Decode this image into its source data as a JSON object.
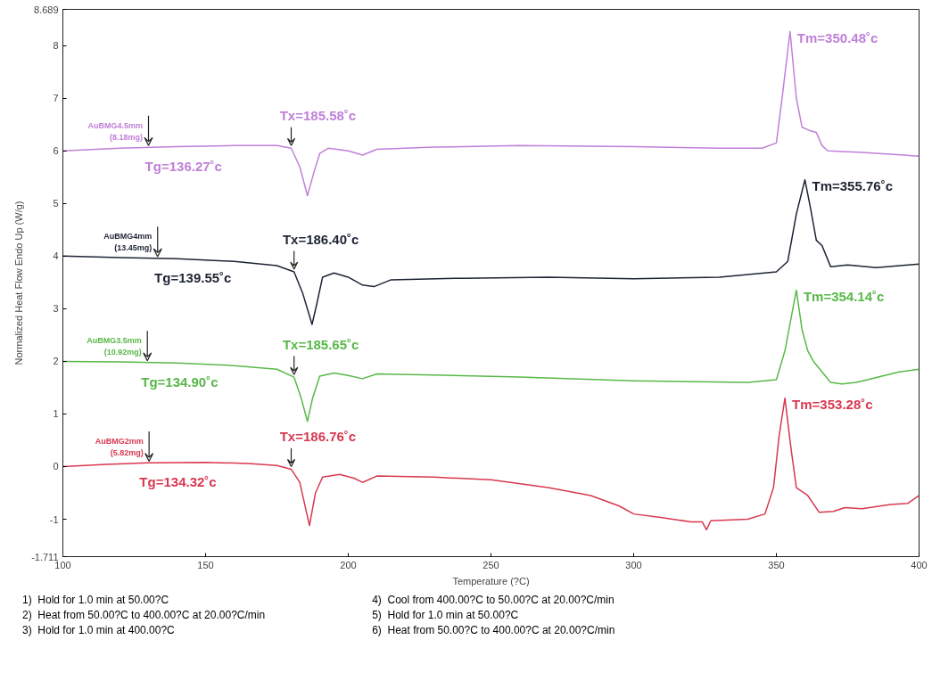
{
  "chart_data": {
    "type": "line",
    "xlabel": "Temperature (?C)",
    "ylabel": "Normalized Heat Flow Endo Up (W/g)",
    "xlim": [
      100,
      400
    ],
    "xticks": [
      100,
      150,
      200,
      250,
      300,
      350,
      400
    ],
    "ylim": [
      -1.711,
      8.689
    ],
    "yticks": [
      -1.711,
      -1,
      0,
      1,
      2,
      3,
      4,
      5,
      6,
      7,
      8,
      8.689
    ],
    "grid": false,
    "marker": "none",
    "line_style": "solid",
    "series": [
      {
        "color": "#c080d8",
        "x": [
          100,
          120,
          140,
          160,
          175,
          180,
          183,
          185.7,
          188,
          190,
          193,
          200,
          205,
          210,
          230,
          260,
          300,
          330,
          345,
          350,
          352,
          354.8,
          357,
          359,
          362,
          364,
          366,
          368,
          380,
          400
        ],
        "values": [
          6.0,
          6.05,
          6.08,
          6.1,
          6.1,
          6.05,
          5.7,
          5.15,
          5.6,
          5.95,
          6.05,
          6.0,
          5.92,
          6.03,
          6.07,
          6.1,
          6.08,
          6.05,
          6.05,
          6.15,
          7.0,
          8.27,
          7.0,
          6.45,
          6.38,
          6.35,
          6.1,
          6.0,
          5.97,
          5.9
        ]
      },
      {
        "color": "#1c2333",
        "x": [
          100,
          120,
          140,
          160,
          175,
          181,
          184,
          187.3,
          189,
          191,
          195,
          200,
          205,
          209,
          215,
          240,
          270,
          300,
          330,
          350,
          354,
          357,
          360,
          362,
          364,
          366,
          369,
          375,
          385,
          400
        ],
        "values": [
          4.0,
          3.97,
          3.95,
          3.9,
          3.82,
          3.7,
          3.3,
          2.7,
          3.1,
          3.6,
          3.68,
          3.6,
          3.45,
          3.42,
          3.55,
          3.58,
          3.6,
          3.57,
          3.6,
          3.7,
          3.9,
          4.8,
          5.45,
          4.9,
          4.3,
          4.2,
          3.8,
          3.83,
          3.78,
          3.85
        ]
      },
      {
        "color": "#58b848",
        "x": [
          100,
          120,
          140,
          160,
          175,
          181,
          183.5,
          185.7,
          187.5,
          190,
          195,
          200,
          205,
          210,
          230,
          260,
          300,
          340,
          350,
          353,
          357,
          359,
          361,
          363,
          366,
          369,
          373,
          378,
          382,
          387,
          393,
          400
        ],
        "values": [
          2.0,
          1.99,
          1.97,
          1.92,
          1.85,
          1.7,
          1.3,
          0.86,
          1.3,
          1.72,
          1.78,
          1.73,
          1.67,
          1.76,
          1.74,
          1.7,
          1.63,
          1.6,
          1.65,
          2.2,
          3.35,
          2.6,
          2.2,
          2.0,
          1.8,
          1.6,
          1.57,
          1.6,
          1.65,
          1.72,
          1.8,
          1.85
        ]
      },
      {
        "color": "#d83850",
        "x": [
          100,
          115,
          130,
          150,
          165,
          175,
          180,
          183,
          186.4,
          188.5,
          191,
          197,
          202,
          205,
          210,
          230,
          250,
          270,
          285,
          295,
          300,
          310,
          320,
          324,
          325.5,
          327,
          340,
          346,
          349,
          351,
          353,
          355,
          357,
          361,
          365,
          370,
          374,
          380,
          390,
          396,
          400
        ],
        "values": [
          0.0,
          0.04,
          0.07,
          0.08,
          0.06,
          0.02,
          -0.05,
          -0.3,
          -1.12,
          -0.5,
          -0.2,
          -0.15,
          -0.22,
          -0.3,
          -0.18,
          -0.2,
          -0.25,
          -0.4,
          -0.55,
          -0.75,
          -0.9,
          -0.97,
          -1.05,
          -1.05,
          -1.2,
          -1.03,
          -1.0,
          -0.9,
          -0.4,
          0.6,
          1.3,
          0.4,
          -0.4,
          -0.55,
          -0.87,
          -0.85,
          -0.78,
          -0.8,
          -0.72,
          -0.7,
          -0.55
        ]
      }
    ],
    "annotations": [
      {
        "text": "AuBMG4.5mm\n(8.18mg)",
        "x": 130,
        "y": 6.07
      },
      {
        "text": "Tg=136.27˚c",
        "x": 136.27,
        "y": 6.07
      },
      {
        "text": "Tx=185.58˚c",
        "x": 180,
        "y": 6.05
      },
      {
        "text": "Tm=350.48˚c",
        "x": 354.8,
        "y": 8.27
      },
      {
        "text": "AuBMG4mm\n(13.45mg)",
        "x": 133.2,
        "y": 3.96
      },
      {
        "text": "Tg=139.55˚c",
        "x": 139.55,
        "y": 3.96
      },
      {
        "text": "Tx=186.40˚c",
        "x": 181,
        "y": 3.7
      },
      {
        "text": "Tm=355.76˚c",
        "x": 360,
        "y": 5.45
      },
      {
        "text": "AuBMG3.5mm\n(10.92mg)",
        "x": 129.6,
        "y": 1.98
      },
      {
        "text": "Tg=134.90˚c",
        "x": 134.9,
        "y": 1.98
      },
      {
        "text": "Tx=185.65˚c",
        "x": 181,
        "y": 1.7
      },
      {
        "text": "Tm=354.14˚c",
        "x": 357,
        "y": 3.35
      },
      {
        "text": "AuBMG2mm\n(5.82mg)",
        "x": 130.2,
        "y": 0.07
      },
      {
        "text": "Tg=134.32˚c",
        "x": 134.32,
        "y": 0.07
      },
      {
        "text": "Tx=186.76˚c",
        "x": 180,
        "y": -0.05
      },
      {
        "text": "Tm=353.28˚c",
        "x": 353,
        "y": 1.3
      },
      "1)  Hold for 1.0 min at 50.00?C",
      "2)  Heat from 50.00?C to 400.00?C at 20.00?C/min",
      "3)  Hold for 1.0 min at 400.00?C",
      "4)  Cool from 400.00?C to 50.00?C at 20.00?C/min",
      "5)  Hold for 1.0 min at 50.00?C",
      "6)  Heat from 50.00?C to 400.00?C at 20.00?C/min"
    ]
  }
}
